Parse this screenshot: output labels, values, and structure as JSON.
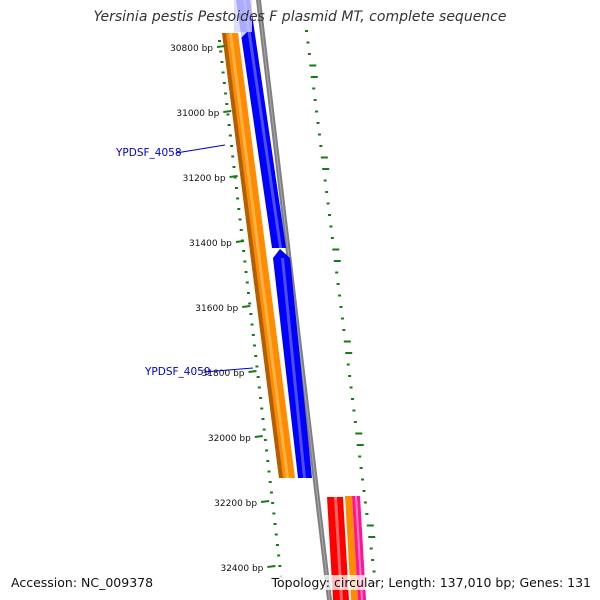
{
  "title": "Yersinia pestis Pestoides F plasmid MT, complete sequence",
  "accession_text": "Accession: NC_009378",
  "summary_text": "Topology: circular; Length: 137,010 bp; Genes: 131",
  "colors": {
    "backbone": "#808080",
    "orange_gene": "#ff8c00",
    "orange_gene_dark": "#b35f00",
    "blue_gene": "#0000ff",
    "red_gene": "#ff0000",
    "pink_gene": "#ff1493",
    "gc_skew": "#1a7a1a",
    "label_blue": "#0000cc"
  },
  "ruler": {
    "unit": "bp",
    "ticks": [
      {
        "pos": 30800,
        "label": "30800 bp"
      },
      {
        "pos": 31000,
        "label": "31000 bp"
      },
      {
        "pos": 31200,
        "label": "31200 bp"
      },
      {
        "pos": 31400,
        "label": "31400 bp"
      },
      {
        "pos": 31600,
        "label": "31600 bp"
      },
      {
        "pos": 31800,
        "label": "31800 bp"
      },
      {
        "pos": 32000,
        "label": "32000 bp"
      },
      {
        "pos": 32200,
        "label": "32200 bp"
      },
      {
        "pos": 32400,
        "label": "32400 bp"
      }
    ]
  },
  "gene_labels": [
    {
      "name": "YPDSF_4058"
    },
    {
      "name": "YPDSF_4059"
    }
  ]
}
